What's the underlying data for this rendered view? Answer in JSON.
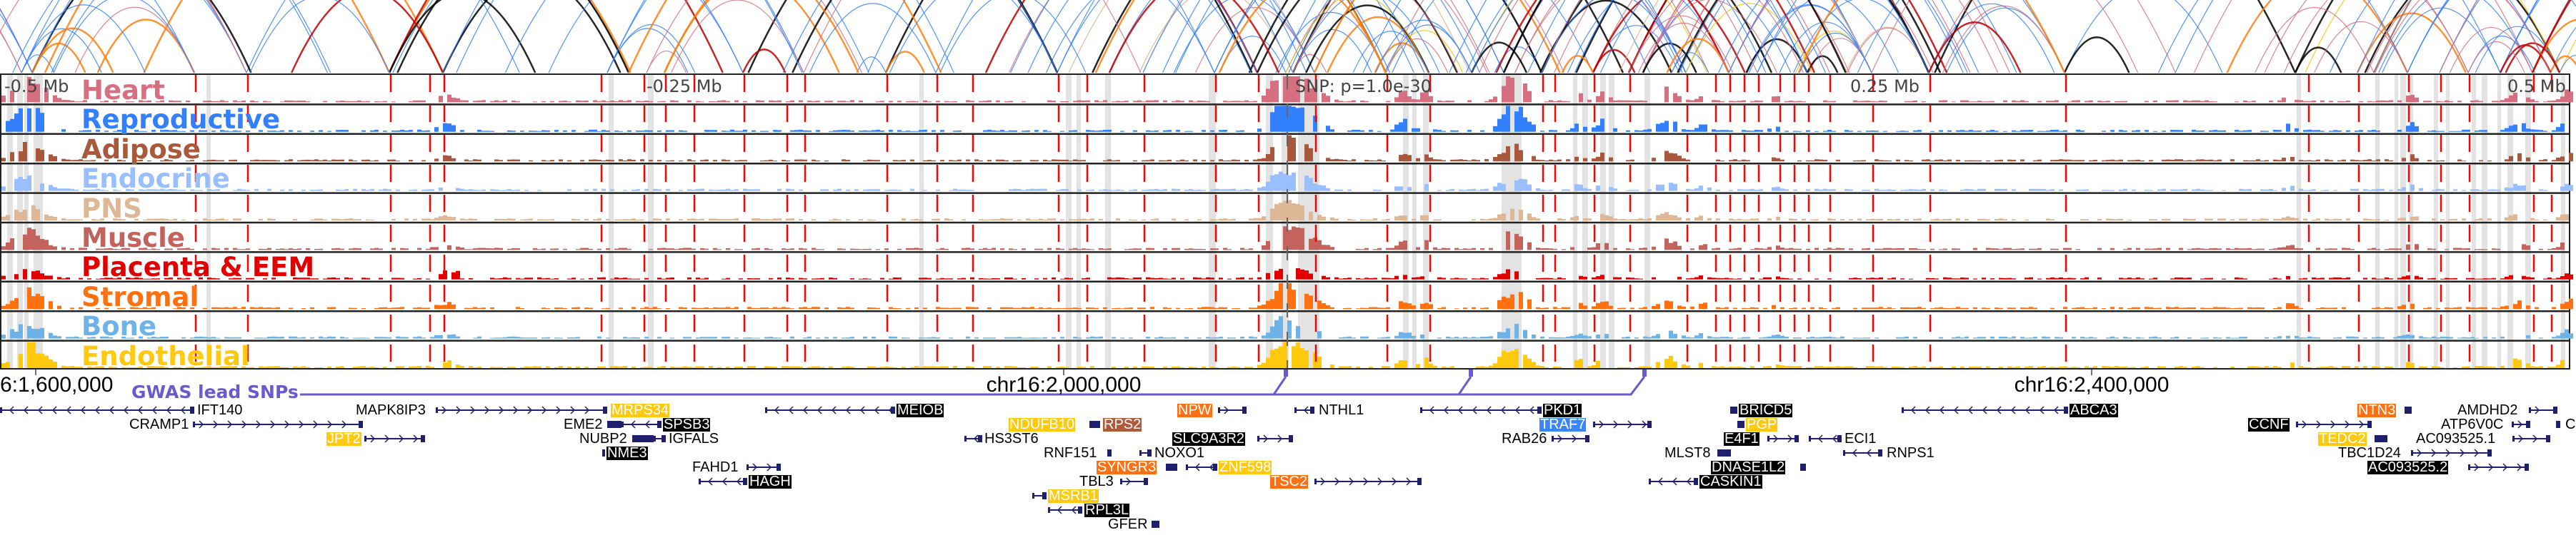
{
  "tracks": [
    {
      "label": "Heart",
      "color": "#d66f7f"
    },
    {
      "label": "Reproductive",
      "color": "#3380ff"
    },
    {
      "label": "Adipose",
      "color": "#a9583b"
    },
    {
      "label": "Endocrine",
      "color": "#99bfff"
    },
    {
      "label": "PNS",
      "color": "#deb896"
    },
    {
      "label": "Muscle",
      "color": "#c4625c"
    },
    {
      "label": "Placenta & EEM",
      "color": "#e00000"
    },
    {
      "label": "Stromal",
      "color": "#ff7110"
    },
    {
      "label": "Bone",
      "color": "#6eb3e8"
    },
    {
      "label": "Endothelial",
      "color": "#ffc90e"
    }
  ],
  "ruler": {
    "left_far": "-0.5 Mb",
    "left_near": "-0.25 Mb",
    "snp": "SNP: p=1.0e-30",
    "right_near": "0.25 Mb",
    "right_far": "0.5 Mb"
  },
  "coordinates": [
    "chr16:1,600,000",
    "chr16:2,000,000",
    "chr16:2,400,000"
  ],
  "gwas": {
    "label": "GWAS lead SNPs",
    "color": "#6a5acd"
  },
  "colors": {
    "snp_line": "#ff0000",
    "gene": "#1f1f6e",
    "highlight_band": "#e3e3e3"
  },
  "genes": [
    {
      "name": "IFT140",
      "highlight": "none"
    },
    {
      "name": "MAPK8IP3",
      "highlight": "none"
    },
    {
      "name": "MRPS34",
      "highlight": "yellow"
    },
    {
      "name": "MEIOB",
      "highlight": "black"
    },
    {
      "name": "NPW",
      "highlight": "orange"
    },
    {
      "name": "NTHL1",
      "highlight": "none"
    },
    {
      "name": "PKD1",
      "highlight": "black"
    },
    {
      "name": "BRICD5",
      "highlight": "black"
    },
    {
      "name": "ABCA3",
      "highlight": "black"
    },
    {
      "name": "NTN3",
      "highlight": "orange"
    },
    {
      "name": "AMDHD2",
      "highlight": "none"
    },
    {
      "name": "CRAMP1",
      "highlight": "none"
    },
    {
      "name": "EME2",
      "highlight": "none"
    },
    {
      "name": "SPSB3",
      "highlight": "black"
    },
    {
      "name": "NDUFB10",
      "highlight": "yellow"
    },
    {
      "name": "RPS2",
      "highlight": "brown"
    },
    {
      "name": "TRAF7",
      "highlight": "blue"
    },
    {
      "name": "PGP",
      "highlight": "yellow"
    },
    {
      "name": "CCNF",
      "highlight": "black"
    },
    {
      "name": "ATP6V0C",
      "highlight": "none"
    },
    {
      "name": "C",
      "highlight": "none"
    },
    {
      "name": "JPT2",
      "highlight": "yellow"
    },
    {
      "name": "NUBP2",
      "highlight": "none"
    },
    {
      "name": "IGFALS",
      "highlight": "none"
    },
    {
      "name": "HS3ST6",
      "highlight": "none"
    },
    {
      "name": "SLC9A3R2",
      "highlight": "black"
    },
    {
      "name": "RAB26",
      "highlight": "none"
    },
    {
      "name": "E4F1",
      "highlight": "black"
    },
    {
      "name": "ECI1",
      "highlight": "none"
    },
    {
      "name": "AC093525.1",
      "highlight": "none"
    },
    {
      "name": "TEDC2",
      "highlight": "yellow"
    },
    {
      "name": "NME3",
      "highlight": "black"
    },
    {
      "name": "RNF151",
      "highlight": "none"
    },
    {
      "name": "NOXO1",
      "highlight": "none"
    },
    {
      "name": "MLST8",
      "highlight": "none"
    },
    {
      "name": "RNPS1",
      "highlight": "none"
    },
    {
      "name": "TBC1D24",
      "highlight": "none"
    },
    {
      "name": "FAHD1",
      "highlight": "none"
    },
    {
      "name": "SYNGR3",
      "highlight": "orange"
    },
    {
      "name": "ZNF598",
      "highlight": "yellow"
    },
    {
      "name": "DNASE1L2",
      "highlight": "black"
    },
    {
      "name": "AC093525.2",
      "highlight": "black"
    },
    {
      "name": "HAGH",
      "highlight": "black"
    },
    {
      "name": "TBL3",
      "highlight": "none"
    },
    {
      "name": "TSC2",
      "highlight": "orange"
    },
    {
      "name": "CASKIN1",
      "highlight": "black"
    },
    {
      "name": "MSRB1",
      "highlight": "yellow"
    },
    {
      "name": "RPL3L",
      "highlight": "black"
    },
    {
      "name": "GFER",
      "highlight": "none"
    }
  ]
}
